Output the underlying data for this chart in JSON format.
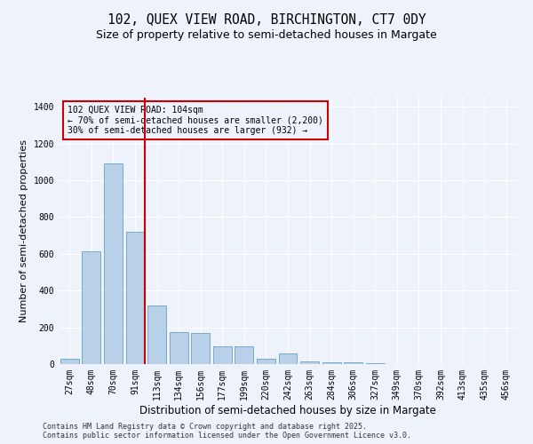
{
  "title_line1": "102, QUEX VIEW ROAD, BIRCHINGTON, CT7 0DY",
  "title_line2": "Size of property relative to semi-detached houses in Margate",
  "xlabel": "Distribution of semi-detached houses by size in Margate",
  "ylabel": "Number of semi-detached properties",
  "categories": [
    "27sqm",
    "48sqm",
    "70sqm",
    "91sqm",
    "113sqm",
    "134sqm",
    "156sqm",
    "177sqm",
    "199sqm",
    "220sqm",
    "242sqm",
    "263sqm",
    "284sqm",
    "306sqm",
    "327sqm",
    "349sqm",
    "370sqm",
    "392sqm",
    "413sqm",
    "435sqm",
    "456sqm"
  ],
  "values": [
    30,
    615,
    1090,
    720,
    320,
    175,
    170,
    95,
    95,
    30,
    60,
    15,
    10,
    10,
    7,
    0,
    0,
    0,
    0,
    0,
    0
  ],
  "bar_color": "#b8d0e8",
  "bar_edge_color": "#7aaac8",
  "vline_color": "#cc0000",
  "annotation_text": "102 QUEX VIEW ROAD: 104sqm\n← 70% of semi-detached houses are smaller (2,200)\n30% of semi-detached houses are larger (932) →",
  "annotation_fontsize": 7,
  "background_color": "#eef2fb",
  "ylim": [
    0,
    1450
  ],
  "yticks": [
    0,
    200,
    400,
    600,
    800,
    1000,
    1200,
    1400
  ],
  "footer_text": "Contains HM Land Registry data © Crown copyright and database right 2025.\nContains public sector information licensed under the Open Government Licence v3.0.",
  "title_fontsize": 10.5,
  "subtitle_fontsize": 9,
  "xlabel_fontsize": 8.5,
  "ylabel_fontsize": 8,
  "tick_fontsize": 7,
  "footer_fontsize": 6
}
